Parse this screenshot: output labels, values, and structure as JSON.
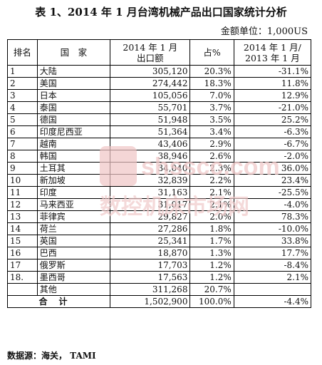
{
  "title": "表 1、2014 年 1 月台湾机械产品出口国家统计分析",
  "unit": "金额单位：1,000US",
  "headers": {
    "rank": "排名",
    "country": "国　家",
    "value": "2014 年 1 月\n出口额",
    "share": "占%",
    "change": "2014 年 1 月/\n2013 年 1 月"
  },
  "rows": [
    {
      "rank": "1",
      "country": "大陆",
      "value": "305,120",
      "share": "20.3%",
      "change": "-31.1%"
    },
    {
      "rank": "2",
      "country": "美国",
      "value": "274,442",
      "share": "18.3%",
      "change": "11.8%"
    },
    {
      "rank": "3",
      "country": "日本",
      "value": "105,056",
      "share": "7.0%",
      "change": "12.9%"
    },
    {
      "rank": "4",
      "country": "泰国",
      "value": "55,701",
      "share": "3.7%",
      "change": "-21.0%"
    },
    {
      "rank": "5",
      "country": "德国",
      "value": "51,948",
      "share": "3.5%",
      "change": "25.2%"
    },
    {
      "rank": "6",
      "country": "印度尼西亚",
      "value": "51,364",
      "share": "3.4%",
      "change": "-6.3%"
    },
    {
      "rank": "7",
      "country": "越南",
      "value": "43,406",
      "share": "2.9%",
      "change": "-6.7%"
    },
    {
      "rank": "8",
      "country": "韩国",
      "value": "38,946",
      "share": "2.6%",
      "change": "-2.0%"
    },
    {
      "rank": "9",
      "country": "土耳其",
      "value": "34,040",
      "share": "2.3%",
      "change": "36.0%"
    },
    {
      "rank": "10",
      "country": "新加坡",
      "value": "32,839",
      "share": "2.2%",
      "change": "23.4%"
    },
    {
      "rank": "11",
      "country": "印度",
      "value": "31,163",
      "share": "2.1%",
      "change": "-25.5%"
    },
    {
      "rank": "12",
      "country": "马来西亚",
      "value": "31,017",
      "share": "2.1%",
      "change": "-4.0%"
    },
    {
      "rank": "13",
      "country": "菲律宾",
      "value": "29,827",
      "share": "2.0%",
      "change": "78.3%"
    },
    {
      "rank": "14",
      "country": "荷兰",
      "value": "27,286",
      "share": "1.8%",
      "change": "-10.0%"
    },
    {
      "rank": "15",
      "country": "英国",
      "value": "25,341",
      "share": "1.7%",
      "change": "33.8%"
    },
    {
      "rank": "16",
      "country": "巴西",
      "value": "18,870",
      "share": "1.3%",
      "change": "17.7%"
    },
    {
      "rank": "17",
      "country": "俄罗斯",
      "value": "17,703",
      "share": "1.2%",
      "change": "-8.4%"
    },
    {
      "rank": "18.",
      "country": "墨西哥",
      "value": "17,563",
      "share": "1.2%",
      "change": "2.1%"
    },
    {
      "rank": "",
      "country": "其他",
      "value": "311,268",
      "share": "20.7%",
      "change": ""
    }
  ],
  "total": {
    "label": "合计",
    "value": "1,502,900",
    "share": "100.0%",
    "change": "-4.4%"
  },
  "source": "数据源：海关， TAMI",
  "watermark": {
    "text": "shsscc.com",
    "subtext": "数控机床市场网",
    "color": "#e8b9b9"
  }
}
